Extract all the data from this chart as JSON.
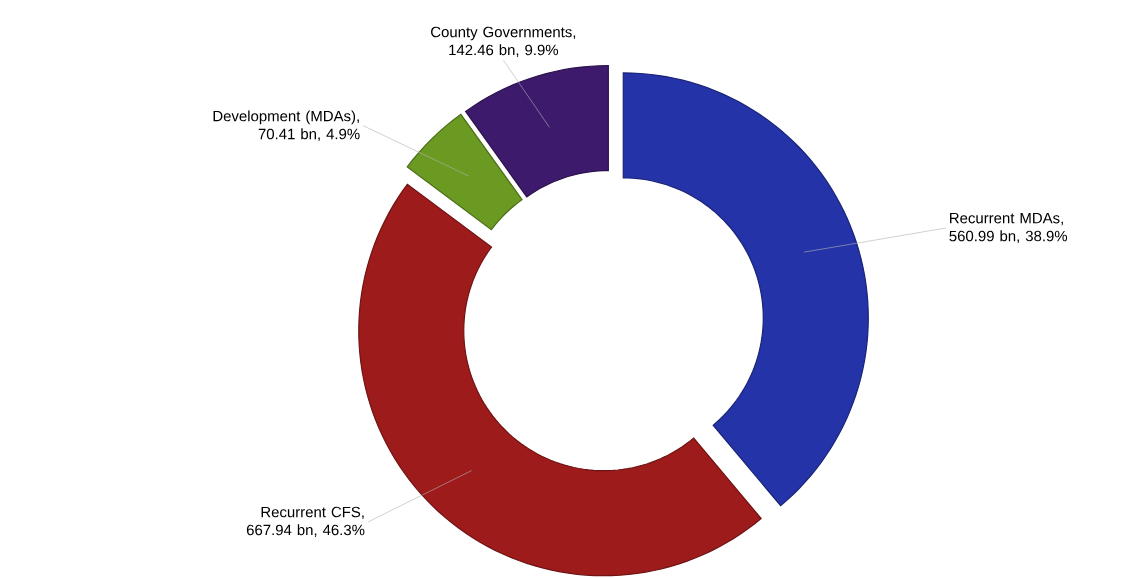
{
  "chart_data": {
    "type": "donut",
    "categories": [
      "Recurrent MDAs",
      "Recurrent CFS",
      "Development (MDAs)",
      "County Governments"
    ],
    "values": [
      38.9,
      46.3,
      4.9,
      9.9
    ],
    "value_labels": [
      ", 560.99 bn, 38.9%",
      ", 667.94 bn, 46.3%",
      ", 70.41 bn, 4.9%",
      ", 142.46 bn, 9.9%"
    ],
    "colors": [
      "#2433a8",
      "#9e1b1b",
      "#6b9a22",
      "#3d1a6c"
    ]
  }
}
